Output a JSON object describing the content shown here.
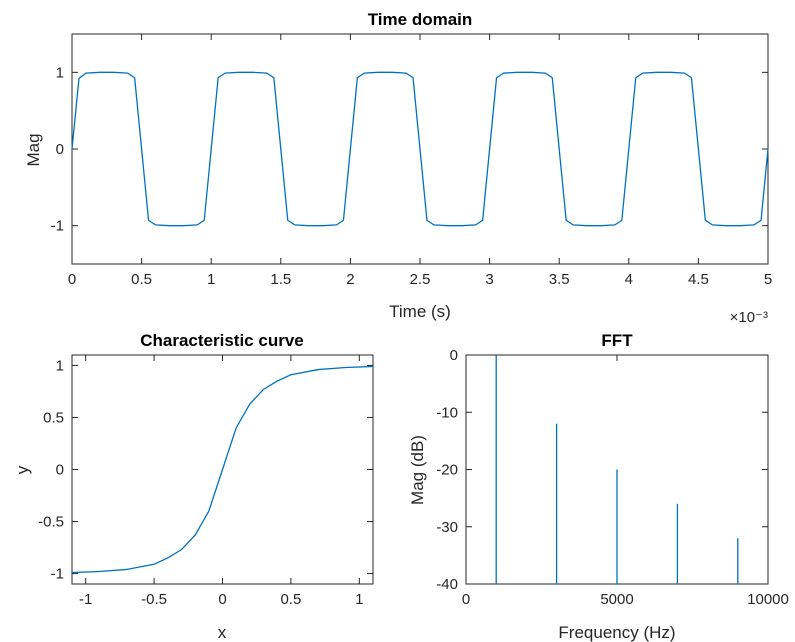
{
  "chart_data": [
    {
      "type": "line",
      "title": "Time domain",
      "xlabel": "Time (s)",
      "ylabel": "Mag",
      "x_exponent_label": "×10⁻³",
      "xlim": [
        0,
        5
      ],
      "ylim": [
        -1.5,
        1.5
      ],
      "xticks": [
        "0",
        "0.5",
        "1",
        "1.5",
        "2",
        "2.5",
        "3",
        "3.5",
        "4",
        "4.5",
        "5"
      ],
      "yticks": [
        "-1",
        "0",
        "1"
      ],
      "series": [
        {
          "color": "#0072bd",
          "x": [
            0,
            0.05,
            0.1,
            0.2,
            0.3,
            0.4,
            0.45,
            0.5,
            0.55,
            0.6,
            0.7,
            0.8,
            0.9,
            0.95,
            1.0,
            1.05,
            1.1,
            1.2,
            1.3,
            1.4,
            1.45,
            1.5,
            1.55,
            1.6,
            1.7,
            1.8,
            1.9,
            1.95,
            2.0,
            2.05,
            2.1,
            2.2,
            2.3,
            2.4,
            2.45,
            2.5,
            2.55,
            2.6,
            2.7,
            2.8,
            2.9,
            2.95,
            3.0,
            3.05,
            3.1,
            3.2,
            3.3,
            3.4,
            3.45,
            3.5,
            3.55,
            3.6,
            3.7,
            3.8,
            3.9,
            3.95,
            4.0,
            4.05,
            4.1,
            4.2,
            4.3,
            4.4,
            4.45,
            4.5,
            4.55,
            4.6,
            4.7,
            4.8,
            4.9,
            4.95,
            5.0
          ],
          "y": [
            0,
            0.92,
            0.99,
            1.0,
            1.0,
            0.99,
            0.93,
            0,
            -0.93,
            -0.99,
            -1.0,
            -1.0,
            -0.99,
            -0.93,
            0,
            0.93,
            0.99,
            1.0,
            1.0,
            0.99,
            0.93,
            0,
            -0.93,
            -0.99,
            -1.0,
            -1.0,
            -0.99,
            -0.93,
            0,
            0.93,
            0.99,
            1.0,
            1.0,
            0.99,
            0.93,
            0,
            -0.93,
            -0.99,
            -1.0,
            -1.0,
            -0.99,
            -0.93,
            0,
            0.93,
            0.99,
            1.0,
            1.0,
            0.99,
            0.93,
            0,
            -0.93,
            -0.99,
            -1.0,
            -1.0,
            -0.99,
            -0.93,
            0,
            0.93,
            0.99,
            1.0,
            1.0,
            0.99,
            0.93,
            0,
            -0.93,
            -0.99,
            -1.0,
            -1.0,
            -0.99,
            -0.93,
            0
          ]
        }
      ]
    },
    {
      "type": "line",
      "title": "Characteristic curve",
      "xlabel": "x",
      "ylabel": "y",
      "xlim": [
        -1.1,
        1.1
      ],
      "ylim": [
        -1.1,
        1.1
      ],
      "xticks": [
        "-1",
        "-0.5",
        "0",
        "0.5",
        "1"
      ],
      "yticks": [
        "-1",
        "-0.5",
        "0",
        "0.5",
        "1"
      ],
      "series": [
        {
          "color": "#0072bd",
          "x": [
            -1.1,
            -0.9,
            -0.7,
            -0.5,
            -0.4,
            -0.3,
            -0.2,
            -0.1,
            0,
            0.1,
            0.2,
            0.3,
            0.4,
            0.5,
            0.7,
            0.9,
            1.1
          ],
          "y": [
            -0.99,
            -0.98,
            -0.96,
            -0.91,
            -0.85,
            -0.77,
            -0.63,
            -0.4,
            0,
            0.4,
            0.63,
            0.77,
            0.85,
            0.91,
            0.96,
            0.98,
            0.99
          ]
        }
      ]
    },
    {
      "type": "bar",
      "title": "FFT",
      "xlabel": "Frequency (Hz)",
      "ylabel": "Mag (dB)",
      "xlim": [
        0,
        10000
      ],
      "ylim": [
        -40,
        0
      ],
      "xticks": [
        "0",
        "5000",
        "10000"
      ],
      "yticks": [
        "-40",
        "-30",
        "-20",
        "-10",
        "0"
      ],
      "series": [
        {
          "color": "#0072bd",
          "x": [
            1000,
            3000,
            5000,
            7000,
            9000
          ],
          "values": [
            0,
            -12,
            -20,
            -26,
            -32
          ]
        }
      ]
    }
  ]
}
